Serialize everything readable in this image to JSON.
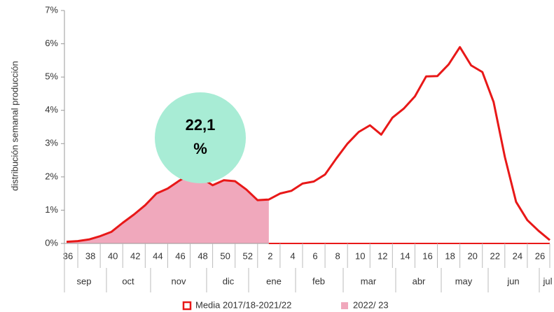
{
  "chart_data": {
    "type": "line",
    "y_label": "distribución semanal producción",
    "categories": [
      "36",
      null,
      "38",
      null,
      "40",
      null,
      "42",
      null,
      "44",
      null,
      "46",
      null,
      "48",
      null,
      "50",
      null,
      "52",
      null,
      "2",
      null,
      "4",
      null,
      "6",
      null,
      "8",
      null,
      "10",
      null,
      "12",
      null,
      "14",
      null,
      "16",
      null,
      "18",
      null,
      "20",
      null,
      "22",
      null,
      "24",
      null,
      "26",
      null
    ],
    "months": [
      "sep",
      "oct",
      "nov",
      "dic",
      "ene",
      "feb",
      "mar",
      "abr",
      "may",
      "jun",
      "jul"
    ],
    "series": [
      {
        "name": "Media 2017/18-2021/22",
        "color": "#e81818",
        "style": "line",
        "values": [
          0.05,
          0.07,
          0.12,
          0.22,
          0.35,
          0.62,
          0.87,
          1.15,
          1.5,
          1.65,
          1.88,
          2.08,
          1.97,
          1.75,
          1.9,
          1.87,
          1.62,
          1.3,
          1.32,
          1.5,
          1.58,
          1.8,
          1.86,
          2.07,
          2.55,
          3.0,
          3.35,
          3.55,
          3.27,
          3.78,
          4.05,
          4.42,
          5.02,
          5.03,
          5.38,
          5.9,
          5.35,
          5.15,
          4.25,
          2.6,
          1.25,
          0.7,
          0.38,
          0.1
        ]
      },
      {
        "name": "2022/ 23",
        "color": "#f0a8bc",
        "style": "area",
        "values": [
          0.03,
          0.07,
          0.12,
          0.22,
          0.35,
          0.62,
          0.87,
          1.15,
          1.5,
          1.65,
          1.88,
          2.08,
          1.97,
          1.75,
          1.9,
          1.87,
          1.62,
          1.28,
          1.32,
          null,
          null,
          null,
          null,
          null,
          null,
          null,
          null,
          null,
          null,
          null,
          null,
          null,
          null,
          null,
          null,
          null,
          null,
          null,
          null,
          null,
          null,
          null,
          null,
          null
        ]
      }
    ],
    "ylim": [
      0,
      7
    ],
    "yticks": [
      {
        "value": 0,
        "label": "0%"
      },
      {
        "value": 1,
        "label": "1%"
      },
      {
        "value": 2,
        "label": "2%"
      },
      {
        "value": 3,
        "label": "3%"
      },
      {
        "value": 4,
        "label": "4%"
      },
      {
        "value": 5,
        "label": "5%"
      },
      {
        "value": 6,
        "label": "6%"
      },
      {
        "value": 7,
        "label": "7%"
      }
    ],
    "annotation": {
      "lines": [
        "22,1",
        "%"
      ],
      "color": "#a8ecd5"
    }
  }
}
